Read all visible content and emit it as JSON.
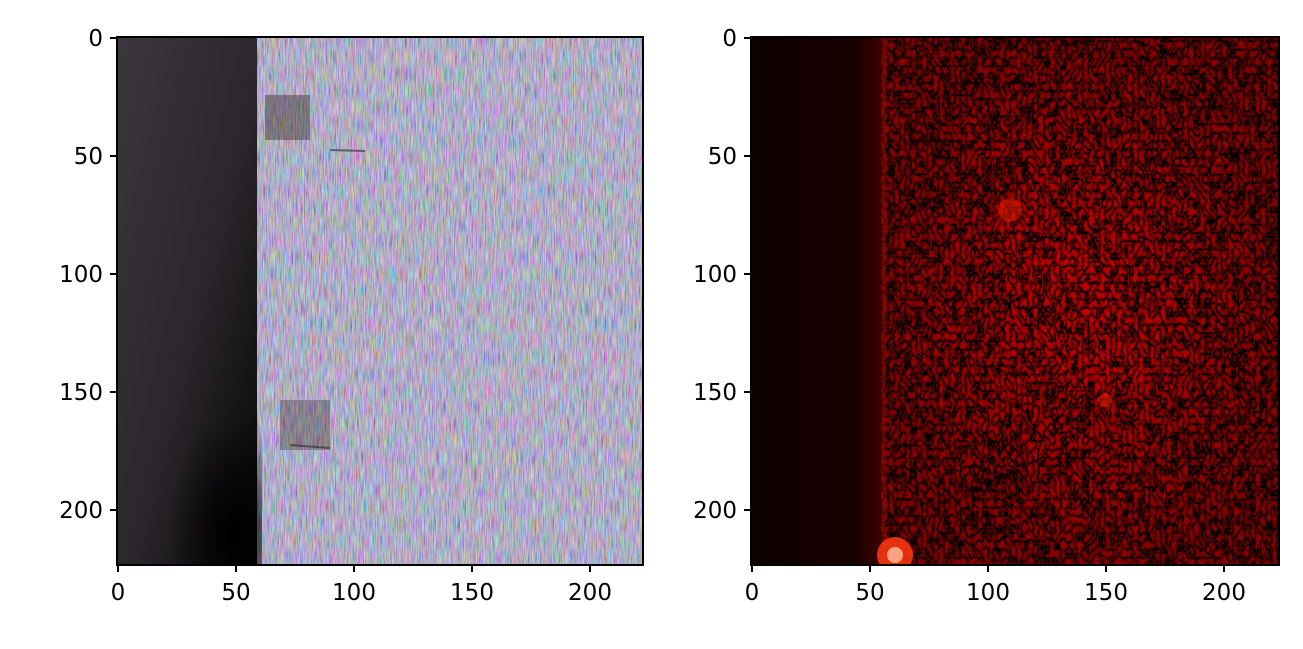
{
  "figure": {
    "panels": [
      {
        "id": "left",
        "content": "photo of machined metal surface",
        "xticks": [
          "0",
          "50",
          "100",
          "150",
          "200"
        ],
        "yticks": [
          "0",
          "50",
          "100",
          "150",
          "200"
        ]
      },
      {
        "id": "right",
        "content": "red heatmap of surface",
        "xticks": [
          "0",
          "50",
          "100",
          "150",
          "200"
        ],
        "yticks": [
          "0",
          "50",
          "100",
          "150",
          "200"
        ]
      }
    ],
    "colors": {
      "left_dark_region": "#2e2a30",
      "left_surface_base": "#7a7888",
      "heatmap_bg": "#150000",
      "heatmap_hot": "#ff1a00"
    }
  }
}
